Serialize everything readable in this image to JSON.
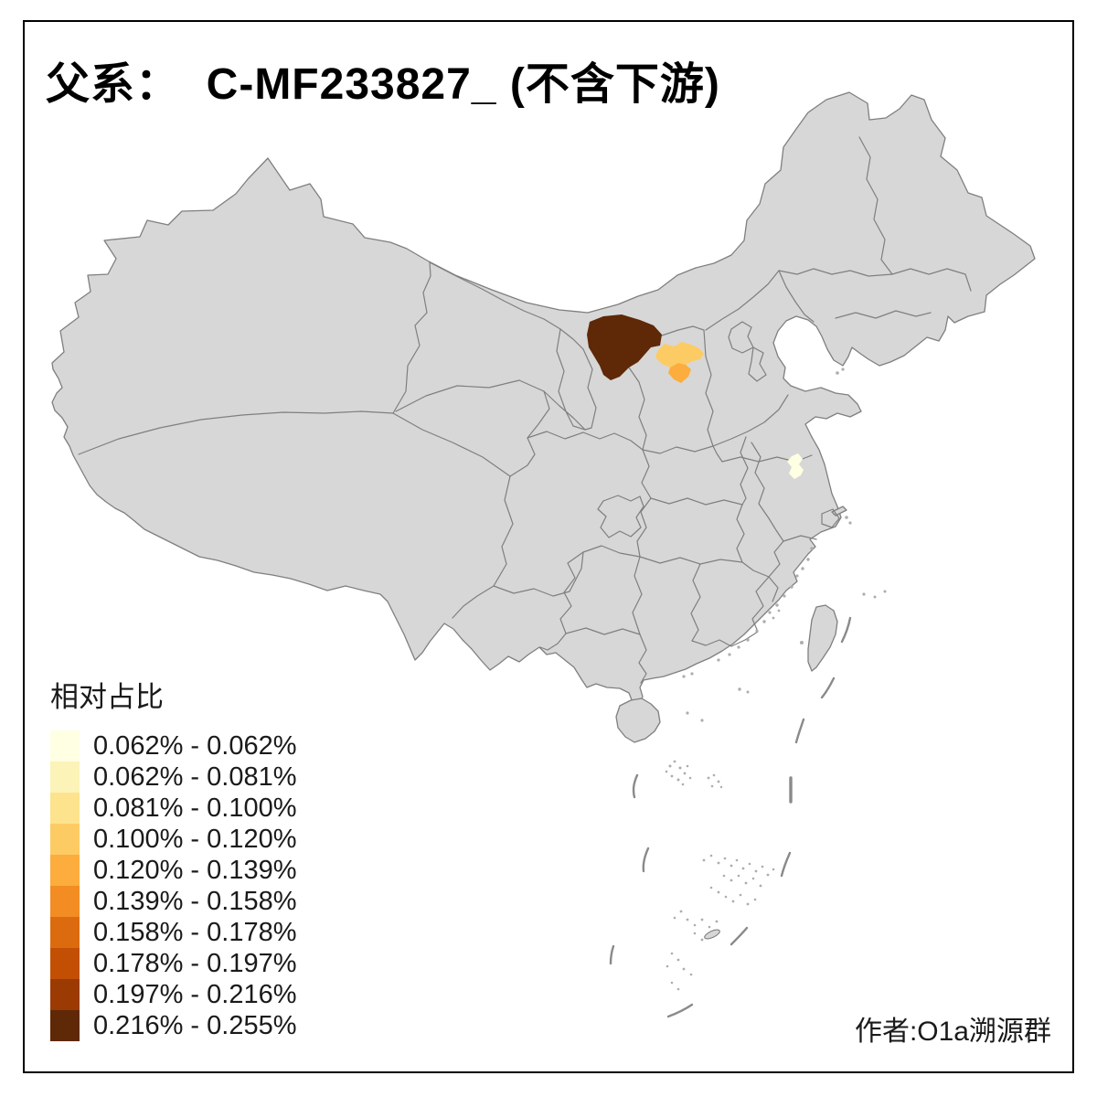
{
  "title": "父系：  C-MF233827_ (不含下游)",
  "legend": {
    "title": "相对占比",
    "items": [
      {
        "label": "0.062% - 0.062%",
        "color": "#FFFFE3"
      },
      {
        "label": "0.062% - 0.081%",
        "color": "#FCF3B8"
      },
      {
        "label": "0.081% - 0.100%",
        "color": "#FDE38D"
      },
      {
        "label": "0.100% - 0.120%",
        "color": "#FDCB63"
      },
      {
        "label": "0.120% - 0.139%",
        "color": "#FCAD3D"
      },
      {
        "label": "0.139% - 0.158%",
        "color": "#F28C23"
      },
      {
        "label": "0.158% - 0.178%",
        "color": "#DC6B10"
      },
      {
        "label": "0.178% - 0.197%",
        "color": "#C24F04"
      },
      {
        "label": "0.197% - 0.216%",
        "color": "#9B3A03"
      },
      {
        "label": "0.216% - 0.255%",
        "color": "#5F2806"
      }
    ]
  },
  "map": {
    "base_fill": "#D7D7D7",
    "border_color": "#7F7F7F",
    "background": "#FFFFFF",
    "frame_color": "#000000",
    "highlighted_regions": [
      {
        "id": "region-ordos-area",
        "legend_class": "0.216% - 0.255%",
        "color": "#5F2806"
      },
      {
        "id": "region-shanxi-north",
        "legend_class": "0.100% - 0.120%",
        "color": "#FDCB63"
      },
      {
        "id": "region-shanxi-central",
        "legend_class": "0.120% - 0.139%",
        "color": "#FCAD3D"
      },
      {
        "id": "region-jiangsu-central",
        "legend_class": "0.062% - 0.062%",
        "color": "#FFFFE3"
      }
    ]
  },
  "attribution": "作者:O1a溯源群"
}
